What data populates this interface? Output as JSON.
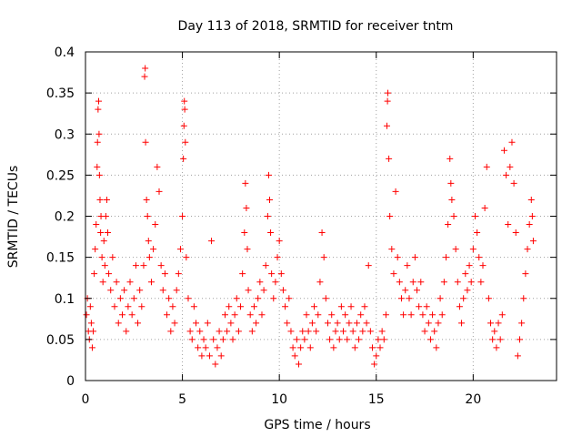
{
  "chart_data": {
    "type": "scatter",
    "title": "Day 113 of 2018, SRMTID for receiver tntm",
    "xlabel": "GPS time / hours",
    "ylabel": "SRMTID / TECUs",
    "xlim": [
      0,
      24.3
    ],
    "ylim": [
      0,
      0.4
    ],
    "xticks": [
      0,
      5,
      10,
      15,
      20
    ],
    "xtick_labels": [
      "0",
      "5",
      "10",
      "15",
      "20"
    ],
    "yticks": [
      0,
      0.05,
      0.1,
      0.15,
      0.2,
      0.25,
      0.3,
      0.35,
      0.4
    ],
    "ytick_labels": [
      "0",
      "0.05",
      "0.1",
      "0.15",
      "0.2",
      "0.25",
      "0.3",
      "0.35",
      "0.4"
    ],
    "grid": true,
    "marker": "+",
    "color": "#ff0000",
    "series": [
      {
        "name": "SRMTID",
        "points": [
          [
            0.05,
            0.08
          ],
          [
            0.1,
            0.1
          ],
          [
            0.15,
            0.06
          ],
          [
            0.2,
            0.05
          ],
          [
            0.25,
            0.09
          ],
          [
            0.3,
            0.07
          ],
          [
            0.35,
            0.04
          ],
          [
            0.4,
            0.06
          ],
          [
            0.45,
            0.13
          ],
          [
            0.5,
            0.16
          ],
          [
            0.55,
            0.19
          ],
          [
            0.6,
            0.26
          ],
          [
            0.62,
            0.29
          ],
          [
            0.65,
            0.33
          ],
          [
            0.68,
            0.34
          ],
          [
            0.7,
            0.3
          ],
          [
            0.72,
            0.25
          ],
          [
            0.75,
            0.22
          ],
          [
            0.78,
            0.18
          ],
          [
            0.8,
            0.2
          ],
          [
            0.85,
            0.15
          ],
          [
            0.9,
            0.12
          ],
          [
            0.95,
            0.17
          ],
          [
            1.0,
            0.14
          ],
          [
            1.05,
            0.2
          ],
          [
            1.1,
            0.22
          ],
          [
            1.15,
            0.18
          ],
          [
            1.2,
            0.13
          ],
          [
            1.3,
            0.11
          ],
          [
            1.4,
            0.15
          ],
          [
            1.5,
            0.09
          ],
          [
            1.6,
            0.12
          ],
          [
            1.7,
            0.07
          ],
          [
            1.8,
            0.1
          ],
          [
            1.9,
            0.08
          ],
          [
            2.0,
            0.11
          ],
          [
            2.1,
            0.06
          ],
          [
            2.2,
            0.09
          ],
          [
            2.3,
            0.12
          ],
          [
            2.4,
            0.08
          ],
          [
            2.5,
            0.1
          ],
          [
            2.6,
            0.14
          ],
          [
            2.7,
            0.07
          ],
          [
            2.8,
            0.11
          ],
          [
            2.9,
            0.09
          ],
          [
            3.0,
            0.14
          ],
          [
            3.05,
            0.37
          ],
          [
            3.08,
            0.38
          ],
          [
            3.1,
            0.29
          ],
          [
            3.15,
            0.22
          ],
          [
            3.2,
            0.2
          ],
          [
            3.25,
            0.17
          ],
          [
            3.3,
            0.15
          ],
          [
            3.4,
            0.12
          ],
          [
            3.5,
            0.16
          ],
          [
            3.6,
            0.19
          ],
          [
            3.7,
            0.26
          ],
          [
            3.8,
            0.23
          ],
          [
            3.9,
            0.14
          ],
          [
            4.0,
            0.11
          ],
          [
            4.1,
            0.13
          ],
          [
            4.2,
            0.08
          ],
          [
            4.3,
            0.1
          ],
          [
            4.4,
            0.06
          ],
          [
            4.5,
            0.09
          ],
          [
            4.6,
            0.07
          ],
          [
            4.7,
            0.11
          ],
          [
            4.8,
            0.13
          ],
          [
            4.9,
            0.16
          ],
          [
            5.0,
            0.2
          ],
          [
            5.05,
            0.27
          ],
          [
            5.08,
            0.31
          ],
          [
            5.1,
            0.34
          ],
          [
            5.12,
            0.33
          ],
          [
            5.15,
            0.29
          ],
          [
            5.2,
            0.15
          ],
          [
            5.3,
            0.1
          ],
          [
            5.4,
            0.06
          ],
          [
            5.5,
            0.05
          ],
          [
            5.6,
            0.09
          ],
          [
            5.7,
            0.07
          ],
          [
            5.8,
            0.04
          ],
          [
            5.9,
            0.06
          ],
          [
            6.0,
            0.03
          ],
          [
            6.1,
            0.05
          ],
          [
            6.2,
            0.04
          ],
          [
            6.3,
            0.07
          ],
          [
            6.4,
            0.03
          ],
          [
            6.5,
            0.17
          ],
          [
            6.6,
            0.05
          ],
          [
            6.7,
            0.02
          ],
          [
            6.8,
            0.04
          ],
          [
            6.9,
            0.06
          ],
          [
            7.0,
            0.03
          ],
          [
            7.1,
            0.05
          ],
          [
            7.2,
            0.08
          ],
          [
            7.3,
            0.06
          ],
          [
            7.4,
            0.09
          ],
          [
            7.5,
            0.07
          ],
          [
            7.6,
            0.05
          ],
          [
            7.7,
            0.08
          ],
          [
            7.8,
            0.1
          ],
          [
            7.9,
            0.06
          ],
          [
            8.0,
            0.09
          ],
          [
            8.1,
            0.13
          ],
          [
            8.2,
            0.18
          ],
          [
            8.25,
            0.24
          ],
          [
            8.3,
            0.21
          ],
          [
            8.35,
            0.16
          ],
          [
            8.4,
            0.11
          ],
          [
            8.5,
            0.08
          ],
          [
            8.6,
            0.06
          ],
          [
            8.7,
            0.09
          ],
          [
            8.8,
            0.07
          ],
          [
            8.9,
            0.1
          ],
          [
            9.0,
            0.12
          ],
          [
            9.1,
            0.08
          ],
          [
            9.2,
            0.11
          ],
          [
            9.3,
            0.14
          ],
          [
            9.4,
            0.2
          ],
          [
            9.45,
            0.25
          ],
          [
            9.5,
            0.22
          ],
          [
            9.55,
            0.18
          ],
          [
            9.6,
            0.13
          ],
          [
            9.7,
            0.1
          ],
          [
            9.8,
            0.12
          ],
          [
            9.9,
            0.15
          ],
          [
            10.0,
            0.17
          ],
          [
            10.1,
            0.13
          ],
          [
            10.2,
            0.11
          ],
          [
            10.3,
            0.09
          ],
          [
            10.4,
            0.07
          ],
          [
            10.5,
            0.1
          ],
          [
            10.6,
            0.06
          ],
          [
            10.7,
            0.04
          ],
          [
            10.8,
            0.03
          ],
          [
            10.9,
            0.05
          ],
          [
            11.0,
            0.02
          ],
          [
            11.1,
            0.04
          ],
          [
            11.2,
            0.06
          ],
          [
            11.3,
            0.05
          ],
          [
            11.4,
            0.08
          ],
          [
            11.5,
            0.06
          ],
          [
            11.6,
            0.04
          ],
          [
            11.7,
            0.07
          ],
          [
            11.8,
            0.09
          ],
          [
            11.9,
            0.06
          ],
          [
            12.0,
            0.08
          ],
          [
            12.1,
            0.12
          ],
          [
            12.2,
            0.18
          ],
          [
            12.3,
            0.15
          ],
          [
            12.4,
            0.1
          ],
          [
            12.5,
            0.07
          ],
          [
            12.6,
            0.05
          ],
          [
            12.7,
            0.08
          ],
          [
            12.8,
            0.04
          ],
          [
            12.9,
            0.06
          ],
          [
            13.0,
            0.07
          ],
          [
            13.1,
            0.05
          ],
          [
            13.2,
            0.09
          ],
          [
            13.3,
            0.06
          ],
          [
            13.4,
            0.08
          ],
          [
            13.5,
            0.05
          ],
          [
            13.6,
            0.07
          ],
          [
            13.7,
            0.09
          ],
          [
            13.8,
            0.06
          ],
          [
            13.9,
            0.04
          ],
          [
            14.0,
            0.07
          ],
          [
            14.1,
            0.05
          ],
          [
            14.2,
            0.08
          ],
          [
            14.3,
            0.06
          ],
          [
            14.4,
            0.09
          ],
          [
            14.5,
            0.07
          ],
          [
            14.6,
            0.14
          ],
          [
            14.7,
            0.06
          ],
          [
            14.8,
            0.04
          ],
          [
            14.9,
            0.02
          ],
          [
            15.0,
            0.03
          ],
          [
            15.1,
            0.05
          ],
          [
            15.2,
            0.04
          ],
          [
            15.3,
            0.06
          ],
          [
            15.4,
            0.05
          ],
          [
            15.5,
            0.08
          ],
          [
            15.55,
            0.31
          ],
          [
            15.58,
            0.34
          ],
          [
            15.6,
            0.35
          ],
          [
            15.65,
            0.27
          ],
          [
            15.7,
            0.2
          ],
          [
            15.8,
            0.16
          ],
          [
            15.9,
            0.13
          ],
          [
            16.0,
            0.23
          ],
          [
            16.1,
            0.15
          ],
          [
            16.2,
            0.12
          ],
          [
            16.3,
            0.1
          ],
          [
            16.4,
            0.08
          ],
          [
            16.5,
            0.11
          ],
          [
            16.6,
            0.14
          ],
          [
            16.7,
            0.1
          ],
          [
            16.8,
            0.08
          ],
          [
            16.9,
            0.12
          ],
          [
            17.0,
            0.15
          ],
          [
            17.1,
            0.11
          ],
          [
            17.2,
            0.09
          ],
          [
            17.3,
            0.12
          ],
          [
            17.4,
            0.08
          ],
          [
            17.5,
            0.06
          ],
          [
            17.6,
            0.09
          ],
          [
            17.7,
            0.07
          ],
          [
            17.8,
            0.05
          ],
          [
            17.9,
            0.08
          ],
          [
            18.0,
            0.06
          ],
          [
            18.1,
            0.04
          ],
          [
            18.2,
            0.07
          ],
          [
            18.3,
            0.1
          ],
          [
            18.4,
            0.08
          ],
          [
            18.5,
            0.12
          ],
          [
            18.6,
            0.15
          ],
          [
            18.7,
            0.19
          ],
          [
            18.8,
            0.27
          ],
          [
            18.85,
            0.24
          ],
          [
            18.9,
            0.22
          ],
          [
            19.0,
            0.2
          ],
          [
            19.1,
            0.16
          ],
          [
            19.2,
            0.12
          ],
          [
            19.3,
            0.09
          ],
          [
            19.4,
            0.07
          ],
          [
            19.5,
            0.1
          ],
          [
            19.6,
            0.13
          ],
          [
            19.7,
            0.11
          ],
          [
            19.8,
            0.14
          ],
          [
            19.9,
            0.12
          ],
          [
            20.0,
            0.16
          ],
          [
            20.1,
            0.2
          ],
          [
            20.2,
            0.18
          ],
          [
            20.3,
            0.15
          ],
          [
            20.4,
            0.12
          ],
          [
            20.5,
            0.14
          ],
          [
            20.6,
            0.21
          ],
          [
            20.7,
            0.26
          ],
          [
            20.8,
            0.1
          ],
          [
            20.9,
            0.07
          ],
          [
            21.0,
            0.05
          ],
          [
            21.1,
            0.06
          ],
          [
            21.2,
            0.04
          ],
          [
            21.3,
            0.07
          ],
          [
            21.4,
            0.05
          ],
          [
            21.5,
            0.08
          ],
          [
            21.6,
            0.28
          ],
          [
            21.7,
            0.25
          ],
          [
            21.8,
            0.19
          ],
          [
            21.9,
            0.26
          ],
          [
            22.0,
            0.29
          ],
          [
            22.1,
            0.24
          ],
          [
            22.2,
            0.18
          ],
          [
            22.3,
            0.03
          ],
          [
            22.4,
            0.05
          ],
          [
            22.5,
            0.07
          ],
          [
            22.6,
            0.1
          ],
          [
            22.7,
            0.13
          ],
          [
            22.8,
            0.16
          ],
          [
            22.9,
            0.19
          ],
          [
            23.0,
            0.22
          ],
          [
            23.05,
            0.2
          ],
          [
            23.1,
            0.17
          ]
        ]
      }
    ]
  }
}
